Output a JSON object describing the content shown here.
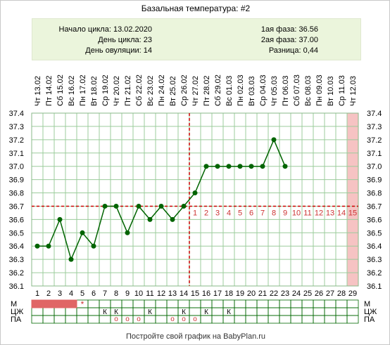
{
  "title": "Базальная температура: #2",
  "info": {
    "cycle_start": "Начало цикла: 13.02.2020",
    "cycle_day": "День цикла: 23",
    "ovulation_day": "День овуляции: 14",
    "phase1": "1ая фаза: 36.56",
    "phase2": "2ая фаза: 37.00",
    "difference": "Разница: 0,44"
  },
  "footer": "Постройте свой график на BabyPlan.ru",
  "colors": {
    "line": "#006400",
    "dot": "#006400",
    "ovulation": "#cc0000",
    "grid": "#9ccc9c",
    "menses": "#e06666",
    "future": "#f6c3c3"
  },
  "chart_data": {
    "type": "line",
    "x": [
      1,
      2,
      3,
      4,
      5,
      6,
      7,
      8,
      9,
      10,
      11,
      12,
      13,
      14,
      15,
      16,
      17,
      18,
      19,
      20,
      21,
      22,
      23
    ],
    "values": [
      36.4,
      36.4,
      36.6,
      36.3,
      36.5,
      36.4,
      36.7,
      36.7,
      36.5,
      36.7,
      36.6,
      36.7,
      36.6,
      36.7,
      36.8,
      37.0,
      37.0,
      37.0,
      37.0,
      37.0,
      37.0,
      37.2,
      37.0
    ],
    "ylim": [
      36.1,
      37.4
    ],
    "yticks": [
      "36.1",
      "36.2",
      "36.3",
      "36.4",
      "36.5",
      "36.6",
      "36.7",
      "36.8",
      "36.9",
      "37.0",
      "37.1",
      "37.2",
      "37.3",
      "37.4"
    ],
    "days": [
      "1",
      "2",
      "3",
      "4",
      "5",
      "6",
      "7",
      "8",
      "9",
      "10",
      "11",
      "12",
      "13",
      "14",
      "15",
      "16",
      "17",
      "18",
      "19",
      "20",
      "21",
      "22",
      "23",
      "24",
      "25",
      "26",
      "27",
      "28",
      "29"
    ],
    "dates": [
      "Чт 13.02",
      "Пт 14.02",
      "Сб 15.02",
      "Вс 16.02",
      "Пн 17.02",
      "Вт 18.02",
      "Ср 19.02",
      "Чт 20.02",
      "Пт 21.02",
      "Сб 22.02",
      "Вс 23.02",
      "Пн 24.02",
      "Вт 25.02",
      "Ср 26.02",
      "Чт 27.02",
      "Пт 28.02",
      "Сб 29.02",
      "Вс 01.03",
      "Пн 02.03",
      "Вт 03.03",
      "Ср 04.03",
      "Чт 05.03",
      "Пт 06.03",
      "Сб 07.03",
      "Вс 08.03",
      "Пн 09.03",
      "Вт 10.03",
      "Ср 11.03",
      "Чт 12.03"
    ],
    "coverline": 36.7,
    "ovulation_day": 14,
    "luteal_numbers": [
      "1",
      "2",
      "3",
      "4",
      "5",
      "6",
      "7",
      "8",
      "9",
      "10",
      "11",
      "12",
      "13",
      "14",
      "15"
    ],
    "highlight_day": 29,
    "rows": {
      "labels": [
        "М",
        "ЦЖ",
        "ПА"
      ],
      "m_days": [
        1,
        2,
        3,
        4
      ],
      "m_star_day": 5,
      "star": "*",
      "k_days": [
        7,
        8,
        11,
        14,
        16,
        18
      ],
      "k_mark": "К",
      "pa_days": [
        8,
        9,
        10,
        13,
        14,
        15
      ],
      "pa_mark": "o"
    }
  }
}
